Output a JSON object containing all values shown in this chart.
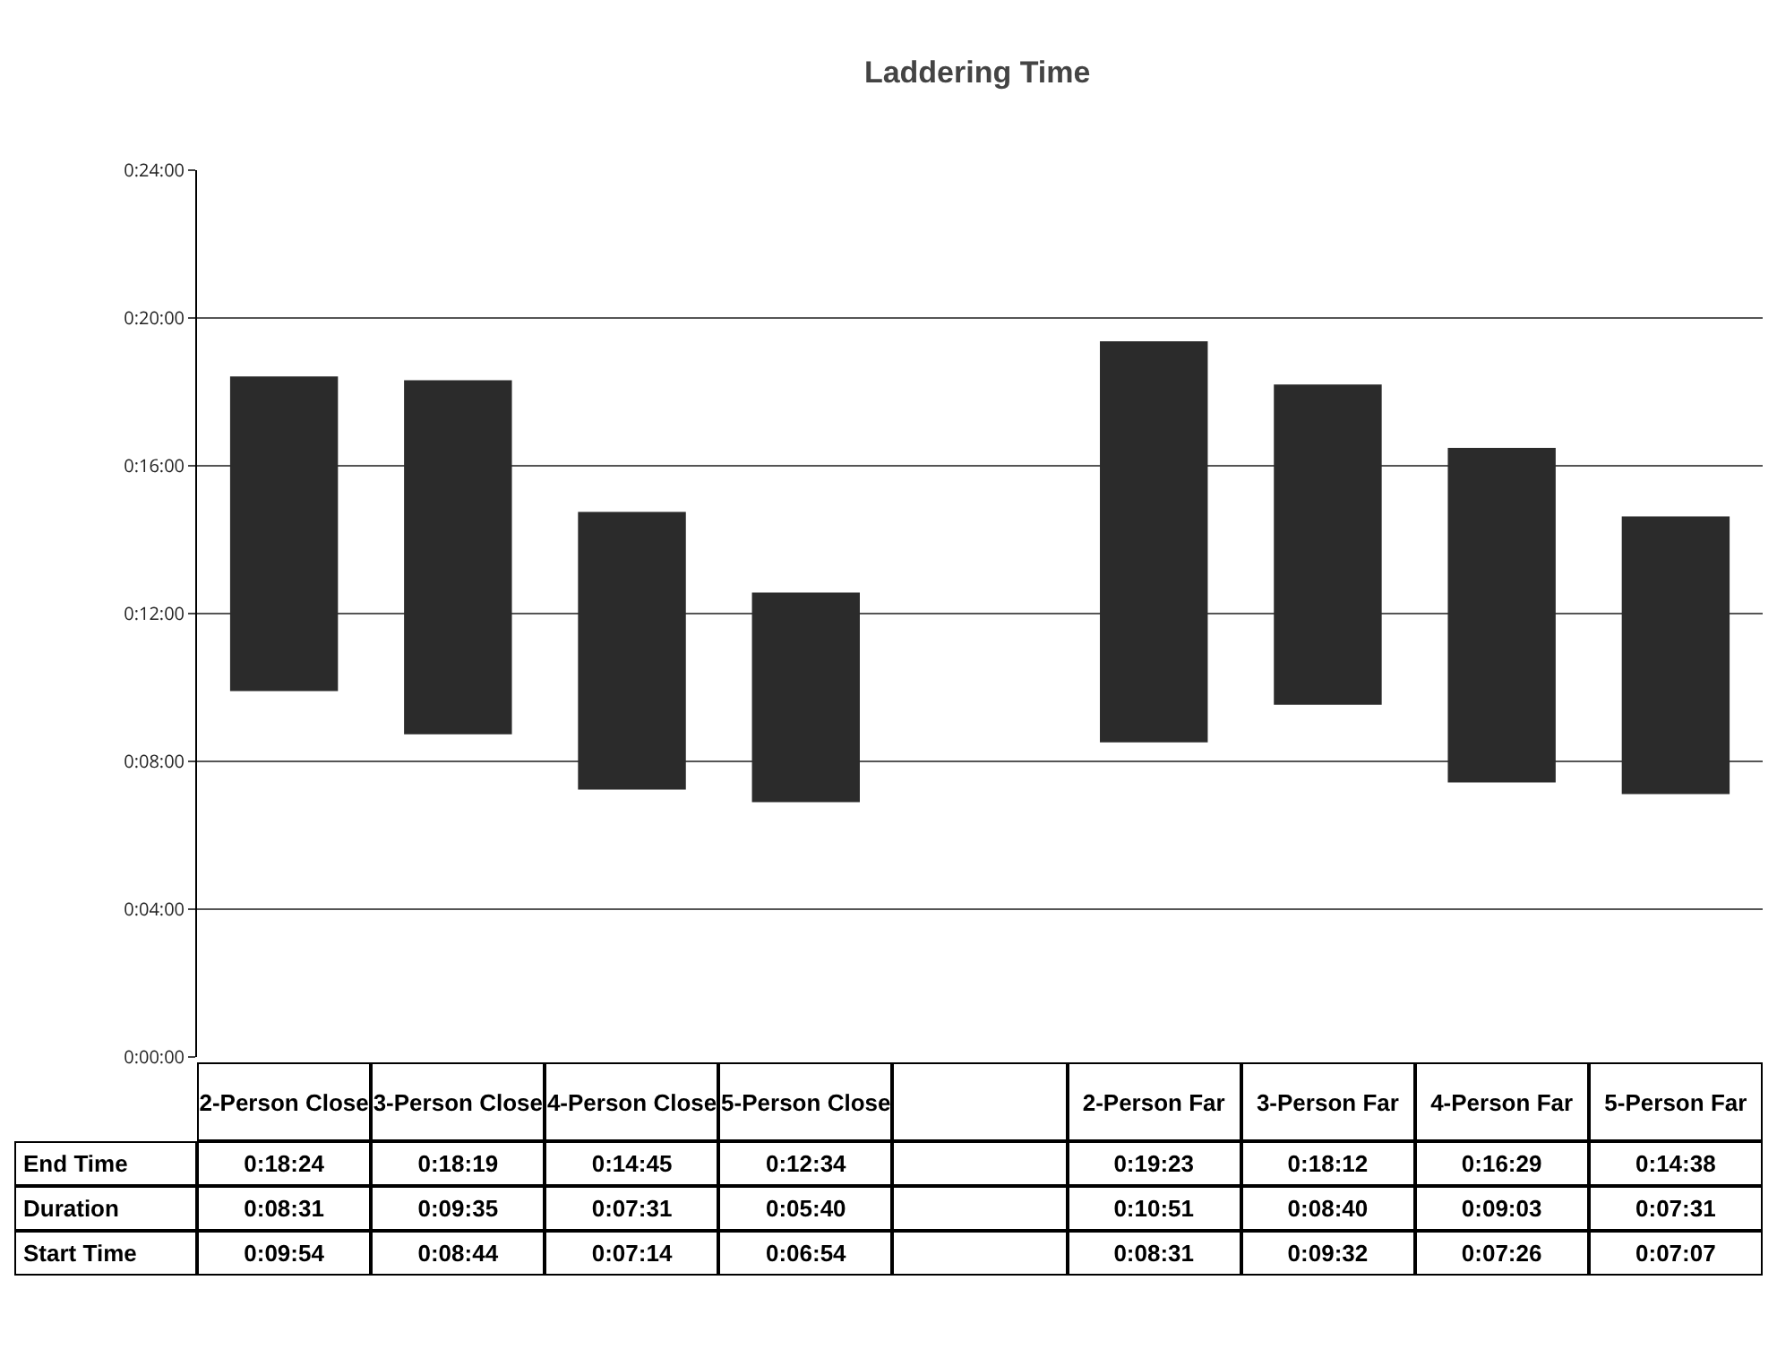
{
  "chart_data": {
    "type": "bar",
    "title": "Laddering Time",
    "categories": [
      "2-Person Close",
      "3-Person Close",
      "4-Person Close",
      "5-Person Close",
      null,
      "2-Person Far",
      "3-Person Far",
      "4-Person Far",
      "5-Person Far"
    ],
    "series": [
      {
        "color": "#2b2b2b",
        "values": [
          8.5167,
          9.5833,
          7.5167,
          5.6667,
          null,
          10.85,
          8.6667,
          9.05,
          7.5167
        ],
        "base": [
          9.9,
          8.7333,
          7.2333,
          6.9,
          null,
          8.5167,
          9.5333,
          7.4333,
          7.1167
        ],
        "value_labels": [
          "0:08:31",
          "0:09:35",
          "0:07:31",
          "0:05:40",
          null,
          "0:10:51",
          "0:08:40",
          "0:09:03",
          "0:07:31"
        ]
      }
    ],
    "ylim": [
      0,
      24
    ],
    "yticks": [
      {
        "value": 0,
        "label": "0:00:00"
      },
      {
        "value": 4,
        "label": "0:04:00"
      },
      {
        "value": 8,
        "label": "0:08:00"
      },
      {
        "value": 12,
        "label": "0:12:00"
      },
      {
        "value": 16,
        "label": "0:16:00"
      },
      {
        "value": 20,
        "label": "0:20:00"
      },
      {
        "value": 24,
        "label": "0:24:00"
      }
    ],
    "grid": "y",
    "legend": false,
    "annotations": [
      "End Time",
      "Duration",
      "Start Time",
      "0:18:24",
      "0:18:19",
      "0:14:45",
      "0:12:34",
      "0:19:23",
      "0:18:12",
      "0:16:29",
      "0:14:38",
      "0:09:54",
      "0:08:44",
      "0:07:14",
      "0:06:54",
      "0:08:31",
      "0:09:32",
      "0:07:26",
      "0:07:07"
    ]
  }
}
